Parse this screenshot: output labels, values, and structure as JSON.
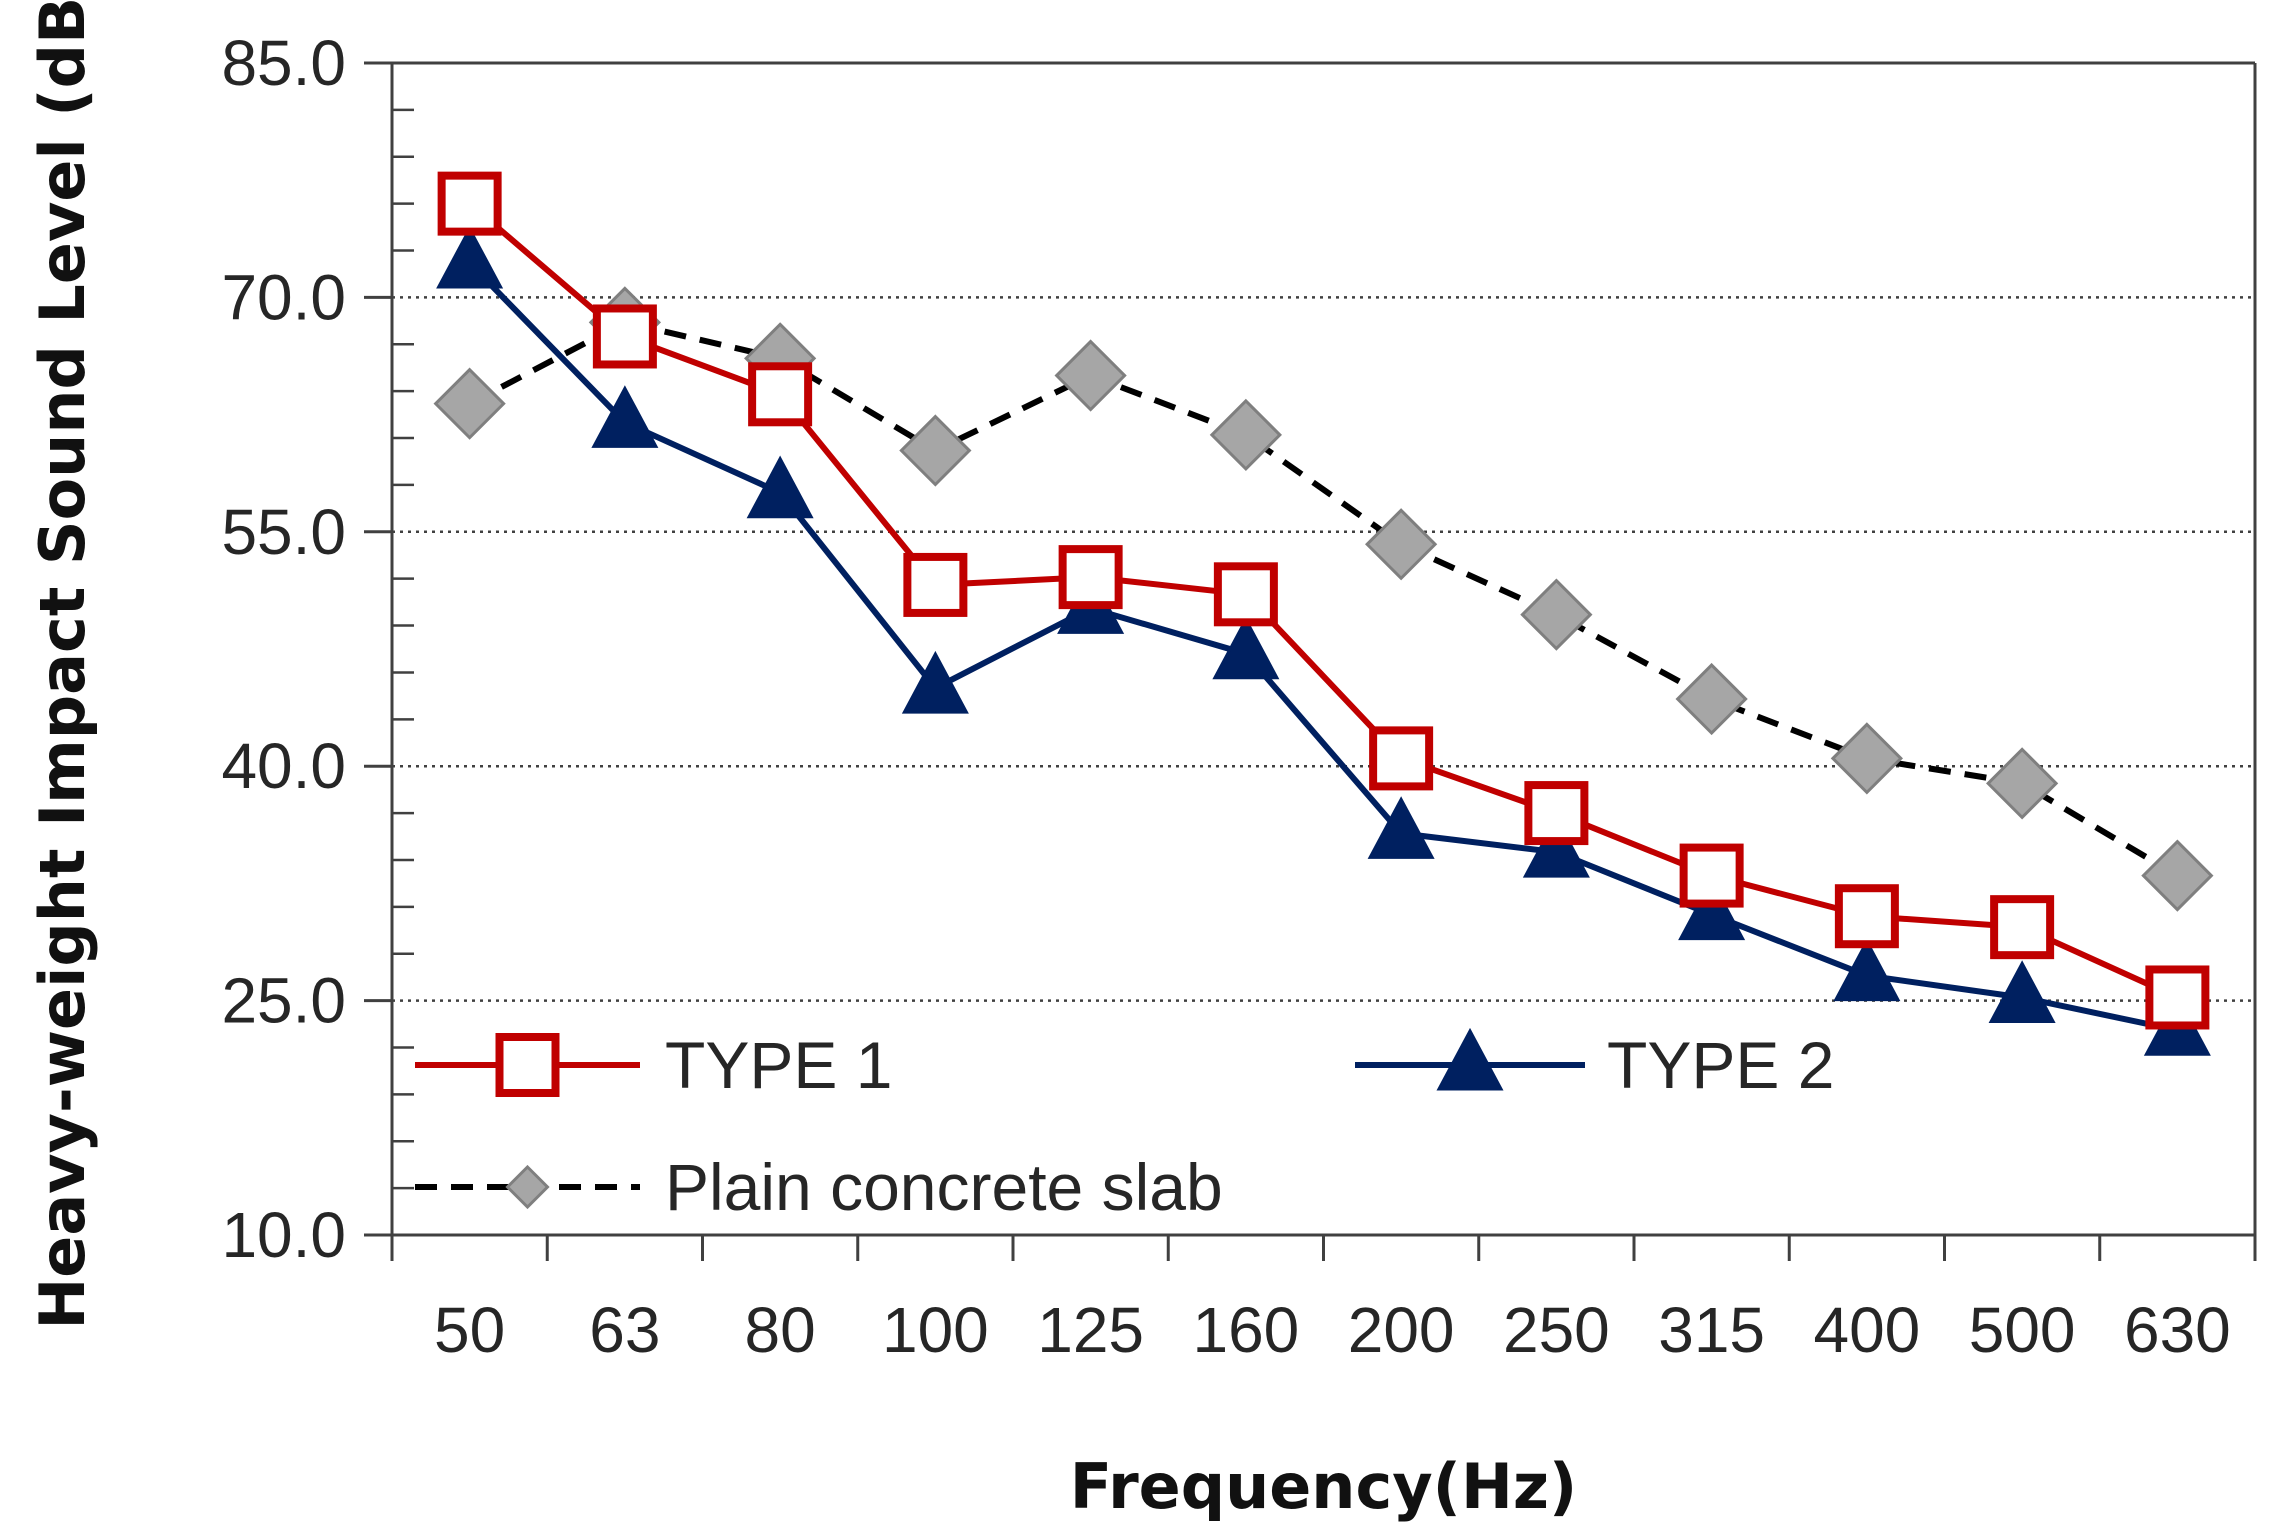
{
  "chart_data": {
    "type": "line",
    "title": "",
    "xlabel": "Frequency(Hz)",
    "ylabel": "Heavy-weight Impact Sound Level (dB)",
    "categories": [
      "50",
      "63",
      "80",
      "100",
      "125",
      "160",
      "200",
      "250",
      "315",
      "400",
      "500",
      "630"
    ],
    "ylim": [
      10,
      85
    ],
    "yticks": [
      "10.0",
      "25.0",
      "40.0",
      "55.0",
      "70.0",
      "85.0"
    ],
    "ytick_values": [
      10,
      25,
      40,
      55,
      70,
      85
    ],
    "grid": "horizontal dotted at labelled ticks",
    "legend_position": "bottom-left",
    "series": [
      {
        "name": "TYPE 1",
        "color": "#c00000",
        "marker": "open-square",
        "line_style": "solid",
        "values": [
          76.0,
          67.5,
          63.8,
          51.6,
          52.1,
          51.0,
          40.5,
          37.0,
          33.0,
          30.4,
          29.7,
          25.2
        ]
      },
      {
        "name": "TYPE 2",
        "color": "#002060",
        "marker": "filled-triangle",
        "line_style": "solid",
        "values": [
          72.2,
          62.0,
          57.5,
          45.0,
          50.1,
          47.2,
          35.7,
          34.5,
          30.5,
          26.6,
          25.2,
          23.1
        ]
      },
      {
        "name": "Plain concrete slab",
        "color": "#000000",
        "marker_color": "#a6a6a6",
        "marker": "diamond",
        "line_style": "dashed",
        "values": [
          63.2,
          68.4,
          66.1,
          60.2,
          65.0,
          61.2,
          54.2,
          49.7,
          44.3,
          40.5,
          38.9,
          33.0
        ]
      }
    ]
  }
}
